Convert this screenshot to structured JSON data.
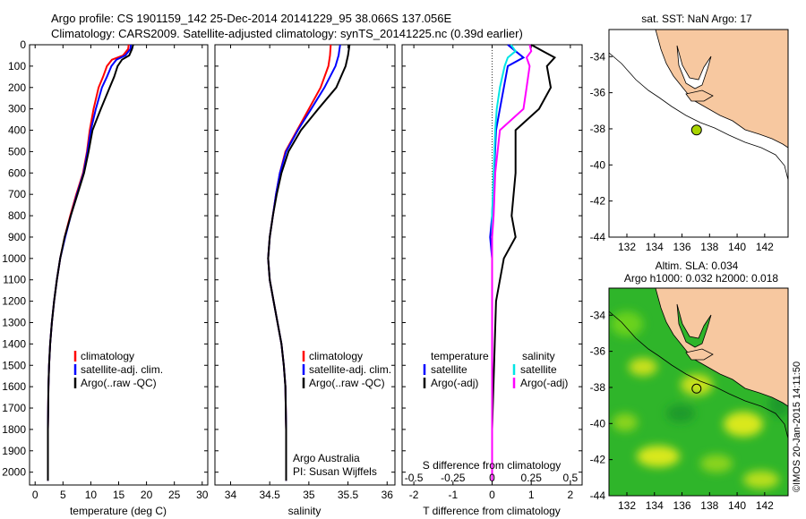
{
  "header": {
    "line1": "Argo profile: CS 1901159_142 25-Dec-2014 20141229_95 38.066S 137.056E",
    "line2": "Climatology: CARS2009. Satellite-adjusted climatology: synTS_20141225.nc (0.39d earlier)"
  },
  "colors": {
    "climatology": "#ff0000",
    "satellite": "#0000ff",
    "argo": "#000000",
    "sal_satellite": "#00e5e5",
    "sal_argo": "#ff00ff",
    "land": "#f7c8a0",
    "coast_box": "#ffffff"
  },
  "credit": "©IMOS 20-Jan-2015 14:11:50",
  "panels": {
    "temperature": {
      "xlabel": "temperature (deg C)",
      "legend": [
        "climatology",
        "satellite-adj. clim.",
        "Argo(..raw -QC)"
      ]
    },
    "salinity": {
      "xlabel": "salinity",
      "legend": [
        "climatology",
        "satellite-adj. clim.",
        "Argo(..raw -QC)"
      ],
      "note1": "Argo Australia",
      "note2": "PI: Susan Wijffels"
    },
    "difference": {
      "xlabel": "T difference from climatology",
      "top_label": "S difference from climatology",
      "legend_t_head": "temperature",
      "legend_s_head": "salinity",
      "legend_t": [
        "satellite",
        "Argo(-adj)"
      ],
      "legend_s": [
        "satellite",
        "Argo(-adj)"
      ]
    },
    "map_sst": {
      "title": "sat. SST: NaN Argo: 17",
      "float_position": {
        "lon": 137.056,
        "lat": -38.066
      }
    },
    "map_sla": {
      "title1": "Altim. SLA: 0.034",
      "title2": "Argo h1000: 0.032 h2000: 0.018",
      "float_position": {
        "lon": 137.056,
        "lat": -38.066
      }
    }
  },
  "chart_data": [
    {
      "type": "line",
      "title": "",
      "xlabel": "temperature (deg C)",
      "ylabel": "",
      "xlim": [
        -1,
        31
      ],
      "ylim": [
        2060,
        0
      ],
      "xticks": [
        0,
        5,
        10,
        15,
        20,
        25,
        30
      ],
      "yticks": [
        0,
        100,
        200,
        300,
        400,
        500,
        600,
        700,
        800,
        900,
        1000,
        1100,
        1200,
        1300,
        1400,
        1500,
        1600,
        1700,
        1800,
        1900,
        2000
      ],
      "series": [
        {
          "name": "climatology",
          "color": "#ff0000",
          "x": [
            16.8,
            16.7,
            15.8,
            13.8,
            12.9,
            12.2,
            11.4,
            10.5,
            9.8,
            9.3,
            8.6,
            7.4,
            6.3,
            5.3,
            4.5,
            3.9,
            3.4,
            3.0,
            2.7,
            2.5,
            2.4,
            2.3,
            2.3
          ],
          "depth": [
            0,
            20,
            50,
            70,
            100,
            150,
            200,
            300,
            400,
            500,
            600,
            700,
            800,
            900,
            1000,
            1100,
            1200,
            1300,
            1400,
            1500,
            1600,
            1800,
            2040
          ]
        },
        {
          "name": "satellite-adj. clim.",
          "color": "#0000ff",
          "x": [
            17.2,
            17.1,
            16.2,
            14.6,
            13.7,
            12.9,
            12.0,
            10.9,
            10.0,
            9.4,
            8.7,
            7.5,
            6.4,
            5.4,
            4.5,
            3.9,
            3.4,
            3.0,
            2.7,
            2.5,
            2.4,
            2.3,
            2.3
          ],
          "depth": [
            0,
            20,
            50,
            70,
            100,
            150,
            200,
            300,
            400,
            500,
            600,
            700,
            800,
            900,
            1000,
            1100,
            1200,
            1300,
            1400,
            1500,
            1600,
            1800,
            2040
          ]
        },
        {
          "name": "Argo(..raw -QC)",
          "color": "#000000",
          "x": [
            17.6,
            17.4,
            16.9,
            15.6,
            14.8,
            14.2,
            13.4,
            11.8,
            10.3,
            9.6,
            8.8,
            7.6,
            6.4,
            5.3,
            4.5,
            3.9,
            3.4,
            3.0,
            2.7,
            2.5,
            2.4,
            2.3,
            2.3
          ],
          "depth": [
            0,
            20,
            50,
            70,
            100,
            150,
            200,
            300,
            400,
            500,
            600,
            700,
            800,
            900,
            1000,
            1100,
            1200,
            1300,
            1400,
            1500,
            1600,
            1800,
            2040
          ]
        }
      ]
    },
    {
      "type": "line",
      "title": "",
      "xlabel": "salinity",
      "ylabel": "",
      "xlim": [
        33.8,
        36.1
      ],
      "ylim": [
        2060,
        0
      ],
      "xticks": [
        34,
        34.5,
        35,
        35.5,
        36
      ],
      "series": [
        {
          "name": "climatology",
          "color": "#ff0000",
          "x": [
            35.28,
            35.27,
            35.25,
            35.15,
            35.0,
            34.85,
            34.7,
            34.63,
            34.58,
            34.54,
            34.5,
            34.48,
            34.5,
            34.55,
            34.6,
            34.65,
            34.68,
            34.7,
            34.71,
            34.71
          ],
          "depth": [
            0,
            50,
            100,
            200,
            300,
            400,
            500,
            600,
            700,
            800,
            900,
            1000,
            1100,
            1200,
            1300,
            1400,
            1500,
            1600,
            1800,
            2040
          ]
        },
        {
          "name": "satellite-adj. clim.",
          "color": "#0000ff",
          "x": [
            35.4,
            35.38,
            35.34,
            35.2,
            35.03,
            34.86,
            34.71,
            34.63,
            34.58,
            34.54,
            34.5,
            34.48,
            34.5,
            34.55,
            34.6,
            34.65,
            34.68,
            34.7,
            34.71,
            34.71
          ],
          "depth": [
            0,
            50,
            100,
            200,
            300,
            400,
            500,
            600,
            700,
            800,
            900,
            1000,
            1100,
            1200,
            1300,
            1400,
            1500,
            1600,
            1800,
            2040
          ]
        },
        {
          "name": "Argo(..raw -QC)",
          "color": "#000000",
          "x": [
            35.52,
            35.5,
            35.47,
            35.35,
            35.12,
            34.9,
            34.74,
            34.65,
            34.59,
            34.54,
            34.5,
            34.48,
            34.5,
            34.55,
            34.6,
            34.65,
            34.68,
            34.7,
            34.71,
            34.71
          ],
          "depth": [
            0,
            50,
            100,
            200,
            300,
            400,
            500,
            600,
            700,
            800,
            900,
            1000,
            1100,
            1200,
            1300,
            1400,
            1500,
            1600,
            1800,
            2040
          ]
        }
      ]
    },
    {
      "type": "line",
      "title": "",
      "xlabel": "T difference from climatology",
      "ylabel": "",
      "xlim": [
        -2.3,
        2.3
      ],
      "ylim": [
        2060,
        0
      ],
      "xticks": [
        -2,
        -1,
        0,
        1,
        2
      ],
      "top_xlabel": "S difference from climatology",
      "top_xticks": [
        -0.5,
        -0.25,
        0,
        0.25,
        0.5
      ],
      "series": [
        {
          "name": "temperature satellite",
          "color": "#0000ff",
          "x": [
            0.4,
            0.6,
            0.8,
            0.4,
            0.3,
            0.2,
            0.1,
            0.05,
            0.0,
            -0.05,
            0.0,
            0.0,
            0.0,
            0.0,
            0.0
          ],
          "depth": [
            0,
            30,
            60,
            100,
            200,
            300,
            400,
            600,
            800,
            900,
            1000,
            1200,
            1500,
            1800,
            2040
          ]
        },
        {
          "name": "temperature Argo(-adj)",
          "color": "#000000",
          "x": [
            1.0,
            1.3,
            1.6,
            1.4,
            1.5,
            1.2,
            0.6,
            0.6,
            0.5,
            0.6,
            0.3,
            0.1,
            0.05,
            0.0,
            0.0
          ],
          "depth": [
            0,
            30,
            60,
            100,
            200,
            300,
            400,
            600,
            800,
            900,
            1000,
            1200,
            1500,
            1800,
            2040
          ]
        },
        {
          "name": "salinity satellite",
          "color": "#00e5e5",
          "x": [
            0.12,
            0.15,
            0.1,
            0.08,
            0.05,
            0.03,
            0.02,
            0.01,
            0.0,
            0.0,
            0.0,
            0.0,
            0.0,
            0.0,
            0.0
          ],
          "depth": [
            0,
            30,
            60,
            100,
            200,
            300,
            400,
            600,
            800,
            900,
            1000,
            1200,
            1500,
            1800,
            2040
          ]
        },
        {
          "name": "salinity Argo(-adj)",
          "color": "#ff00ff",
          "x": [
            0.24,
            0.25,
            0.22,
            0.24,
            0.22,
            0.2,
            0.05,
            0.02,
            0.01,
            0.0,
            0.0,
            0.0,
            0.0,
            0.0,
            0.0
          ],
          "depth": [
            0,
            30,
            60,
            100,
            200,
            300,
            400,
            600,
            800,
            900,
            1000,
            1200,
            1500,
            1800,
            2040
          ]
        }
      ]
    },
    {
      "type": "scatter",
      "title": "sat. SST: NaN Argo: 17",
      "xlim": [
        130.7,
        143.7
      ],
      "ylim": [
        -44,
        -32.5
      ],
      "xticks": [
        132,
        134,
        136,
        138,
        140,
        142
      ],
      "yticks": [
        -34,
        -36,
        -38,
        -40,
        -42,
        -44
      ],
      "points": [
        {
          "lon": 137.056,
          "lat": -38.066
        }
      ]
    },
    {
      "type": "heatmap",
      "title": "Altim. SLA: 0.034",
      "subtitle": "Argo h1000: 0.032 h2000: 0.018",
      "xlim": [
        130.7,
        143.7
      ],
      "ylim": [
        -44,
        -32.5
      ],
      "xticks": [
        132,
        134,
        136,
        138,
        140,
        142
      ],
      "yticks": [
        -34,
        -36,
        -38,
        -40,
        -42,
        -44
      ],
      "points": [
        {
          "lon": 137.056,
          "lat": -38.066
        }
      ]
    }
  ]
}
